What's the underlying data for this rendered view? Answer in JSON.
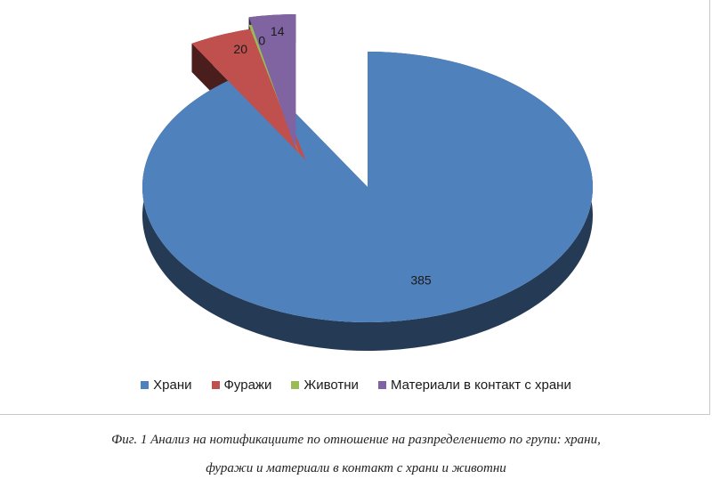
{
  "chart_data": {
    "type": "pie",
    "style": "3d-exploded",
    "categories": [
      "Храни",
      "Фуражи",
      "Животни",
      "Материали в контакт с храни"
    ],
    "values": [
      385,
      20,
      0,
      14
    ],
    "colors": [
      "#4f81bd",
      "#c0504d",
      "#9bbb59",
      "#8064a2"
    ],
    "data_labels": [
      "385",
      "20",
      "0",
      "14"
    ],
    "legend_position": "bottom",
    "title": ""
  },
  "caption": {
    "line1": "Фиг. 1 Анализ на нотификациите по отношение на разпределението по групи: храни,",
    "line2": "фуражи и материали в контакт с храни и животни"
  }
}
